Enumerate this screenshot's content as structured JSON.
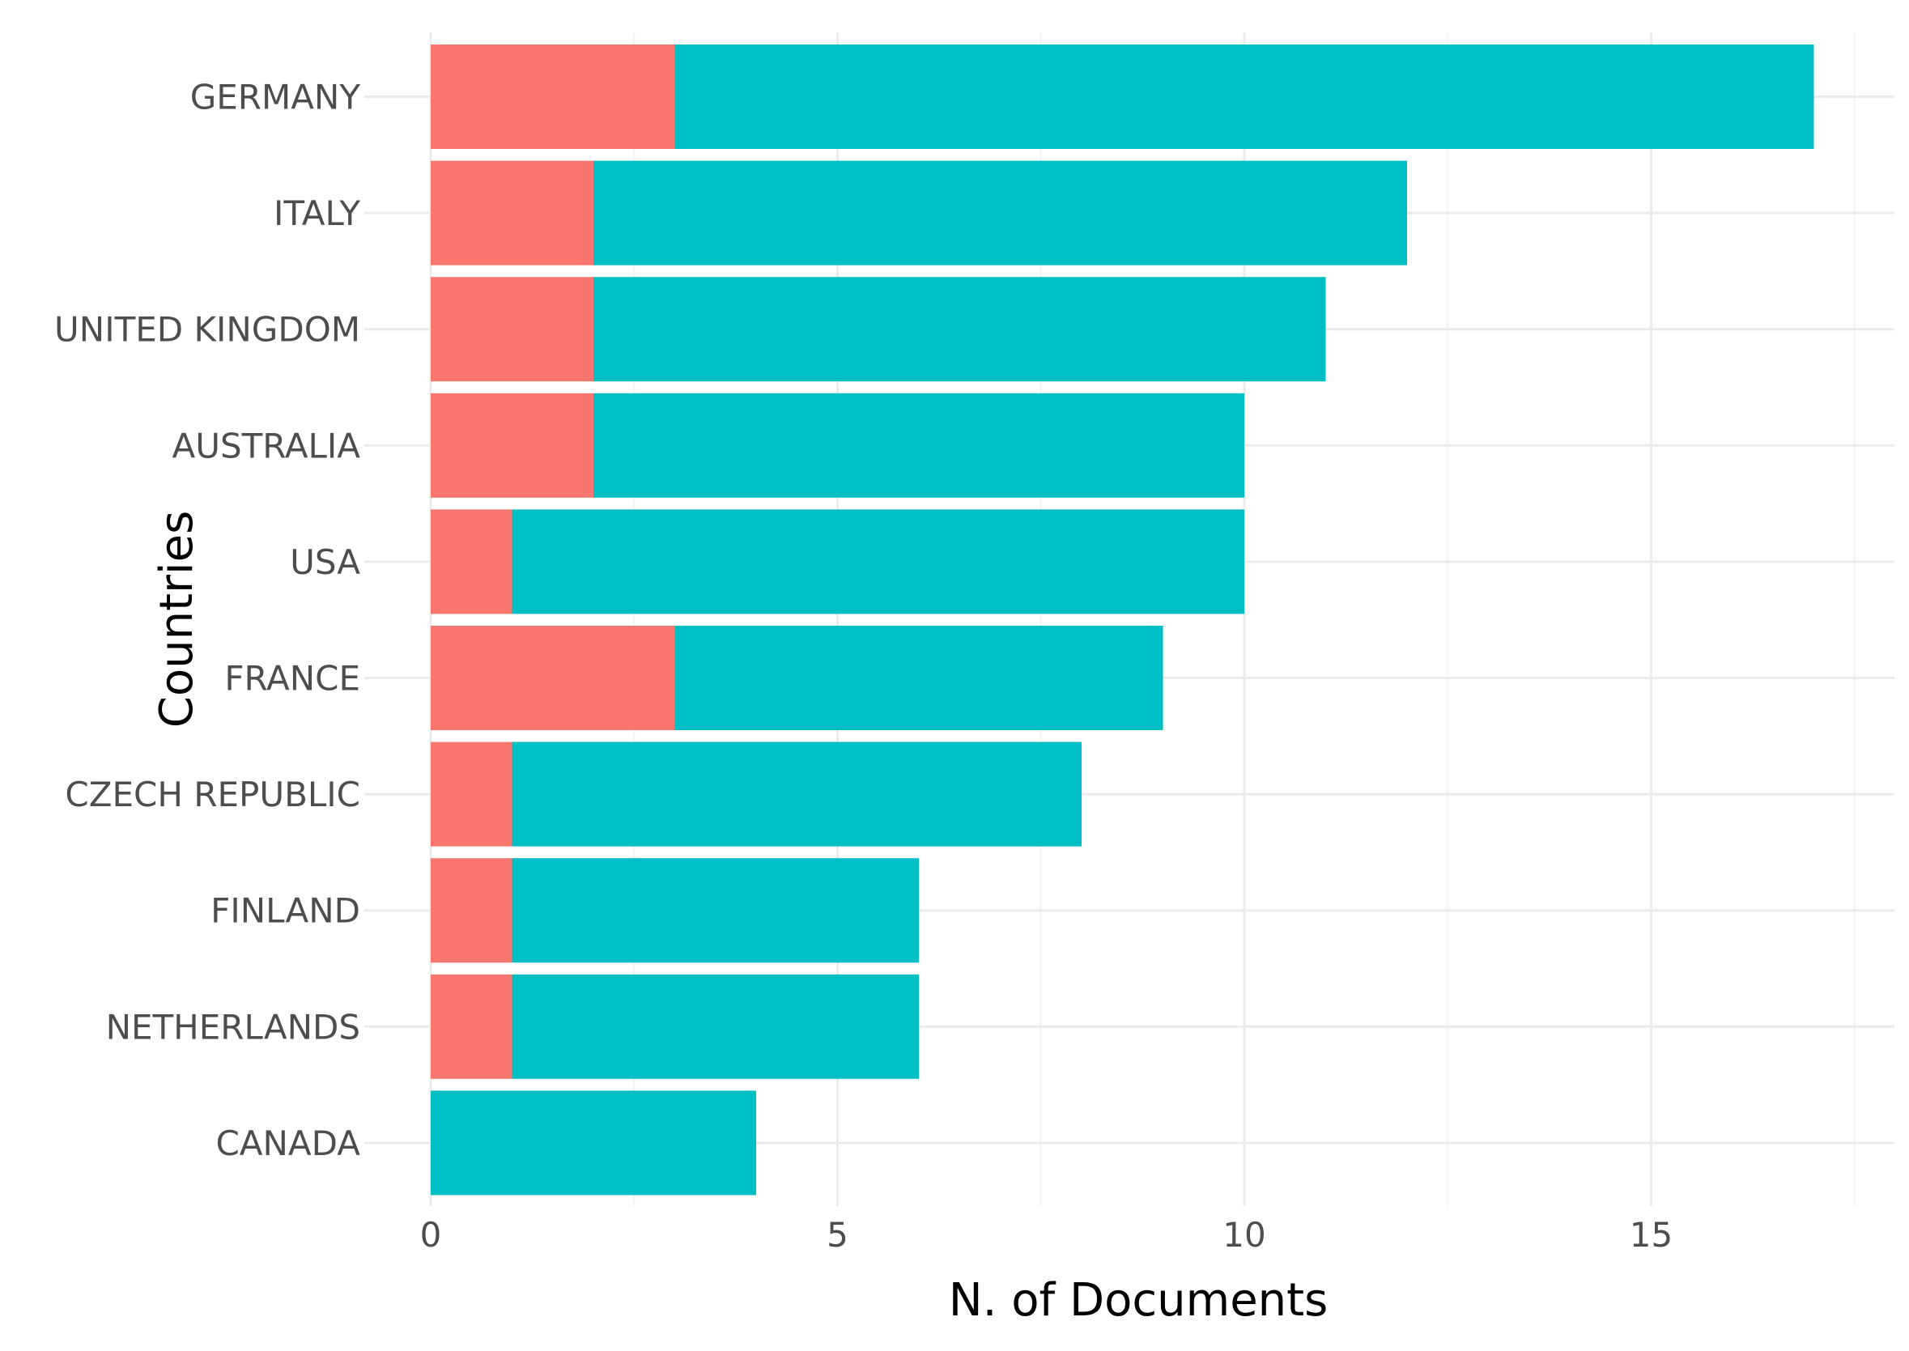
{
  "chart_data": {
    "type": "bar",
    "orientation": "horizontal",
    "stacked": true,
    "xlabel": "N. of Documents",
    "ylabel": "Countries",
    "xlim": [
      0,
      18
    ],
    "x_ticks": [
      0,
      5,
      10,
      15
    ],
    "grid": true,
    "legend": "none",
    "categories": [
      "GERMANY",
      "ITALY",
      "UNITED KINGDOM",
      "AUSTRALIA",
      "USA",
      "FRANCE",
      "CZECH REPUBLIC",
      "FINLAND",
      "NETHERLANDS",
      "CANADA"
    ],
    "series": [
      {
        "color": "#F8766D",
        "values": [
          3,
          2,
          2,
          2,
          1,
          3,
          1,
          1,
          1,
          0
        ]
      },
      {
        "color": "#00BFC4",
        "values": [
          14,
          10,
          9,
          8,
          9,
          6,
          7,
          5,
          5,
          4
        ]
      }
    ]
  }
}
